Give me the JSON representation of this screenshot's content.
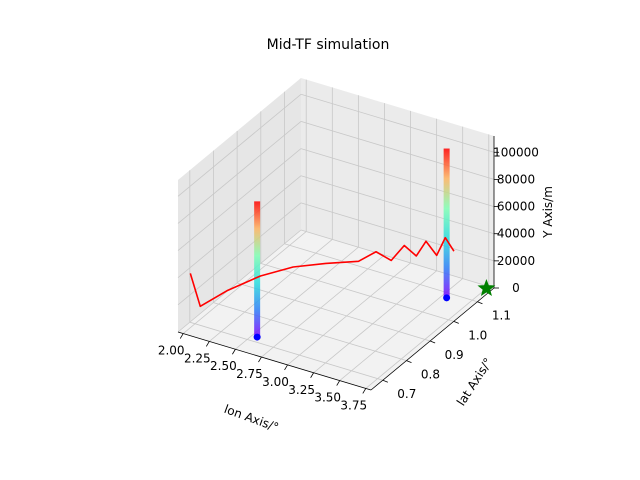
{
  "chart_data": {
    "type": "line3d",
    "title": "Mid-TF simulation",
    "xlabel": "lon Axis/°",
    "ylabel": "lat Axis/°",
    "zlabel": "Y Axis/m",
    "xlim": [
      1.95,
      3.8
    ],
    "ylim": [
      0.65,
      1.17
    ],
    "zlim": [
      0,
      112000
    ],
    "x_ticks": [
      "2.00",
      "2.25",
      "2.50",
      "2.75",
      "3.00",
      "3.25",
      "3.50",
      "3.75"
    ],
    "y_ticks": [
      "0.7",
      "0.8",
      "0.9",
      "1.0",
      "1.1"
    ],
    "z_ticks": [
      "0",
      "20000",
      "40000",
      "60000",
      "80000",
      "100000"
    ],
    "grid": true,
    "trajectory": {
      "color": "#ff0000",
      "points": [
        [
          2.0,
          0.68,
          40000
        ],
        [
          2.05,
          0.7,
          14000
        ],
        [
          2.2,
          0.75,
          22000
        ],
        [
          2.4,
          0.8,
          30000
        ],
        [
          2.6,
          0.85,
          34000
        ],
        [
          2.8,
          0.9,
          34000
        ],
        [
          3.0,
          0.95,
          33000
        ],
        [
          3.1,
          0.98,
          38000
        ],
        [
          3.2,
          1.0,
          31000
        ],
        [
          3.28,
          1.02,
          41000
        ],
        [
          3.35,
          1.04,
          32000
        ],
        [
          3.42,
          1.05,
          43000
        ],
        [
          3.5,
          1.06,
          33000
        ],
        [
          3.56,
          1.07,
          46000
        ],
        [
          3.62,
          1.08,
          36000
        ]
      ]
    },
    "columns": [
      {
        "x": 2.55,
        "y": 0.72,
        "z_top": 100000,
        "colormap": "rainbow"
      },
      {
        "x": 3.55,
        "y": 1.08,
        "z_top": 110000,
        "colormap": "rainbow"
      }
    ],
    "marker": {
      "shape": "star",
      "color": "#008000",
      "x": 3.75,
      "y": 1.16,
      "z": 0
    }
  }
}
